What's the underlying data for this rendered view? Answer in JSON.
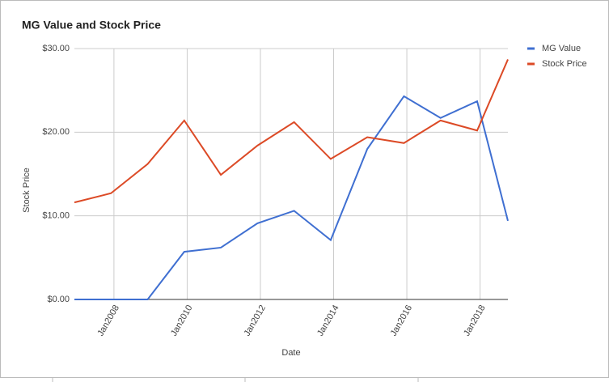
{
  "chart_data": {
    "type": "line",
    "title": "MG Value and Stock Price",
    "x_label": "Date",
    "y_label": "Stock Price",
    "x": [
      2006.92,
      2007.92,
      2008.92,
      2009.92,
      2010.92,
      2011.92,
      2012.92,
      2013.92,
      2014.92,
      2015.92,
      2016.92,
      2017.92,
      2018.76
    ],
    "series": [
      {
        "name": "MG Value",
        "color": "#3f6fd1",
        "values": [
          0,
          0,
          0,
          5.7,
          6.2,
          9.1,
          10.6,
          7.1,
          18,
          24.3,
          21.7,
          23.7,
          9.4
        ]
      },
      {
        "name": "Stock Price",
        "color": "#dc4a26",
        "values": [
          11.6,
          12.7,
          16.2,
          21.4,
          14.9,
          18.4,
          21.2,
          16.8,
          19.4,
          18.7,
          21.4,
          20.2,
          28.7
        ]
      }
    ],
    "xlim": [
      2006.92,
      2018.76
    ],
    "xticks": [
      {
        "value": 2008,
        "label": "Jan2008"
      },
      {
        "value": 2010,
        "label": "Jan2010"
      },
      {
        "value": 2012,
        "label": "Jan2012"
      },
      {
        "value": 2014,
        "label": "Jan2014"
      },
      {
        "value": 2016,
        "label": "Jan2016"
      },
      {
        "value": 2018,
        "label": "Jan2018"
      }
    ],
    "ylim": [
      0,
      30
    ],
    "yticks": [
      {
        "value": 0,
        "label": "$0.00"
      },
      {
        "value": 10,
        "label": "$10.00"
      },
      {
        "value": 20,
        "label": "$20.00"
      },
      {
        "value": 30,
        "label": "$30.00"
      }
    ],
    "grid": true,
    "legend": "right"
  }
}
